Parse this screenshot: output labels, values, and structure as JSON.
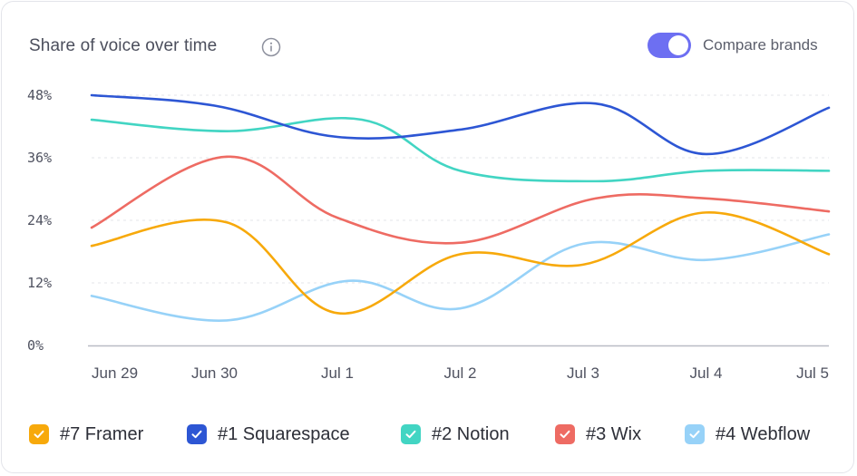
{
  "header": {
    "title": "Share of voice over time",
    "info_icon": "info-icon",
    "toggle_label": "Compare brands",
    "toggle_on": true,
    "toggle_color": "#6d6ff2"
  },
  "chart_data": {
    "type": "line",
    "title": "Share of voice over time",
    "categories": [
      "Jun 29",
      "Jun 30",
      "Jul 1",
      "Jul 2",
      "Jul 3",
      "Jul 4",
      "Jul 5"
    ],
    "y_ticks": [
      "0%",
      "12%",
      "24%",
      "36%",
      "48%"
    ],
    "ylim": [
      0,
      50
    ],
    "grid": true,
    "legend_position": "bottom",
    "series": [
      {
        "name": "#7 Framer",
        "color": "#f7a90b",
        "x": [
          0,
          1.1,
          2,
          3,
          4.0,
          5,
          6
        ],
        "values": [
          19.1,
          23.6,
          6.2,
          17.5,
          15.5,
          25.5,
          17.5
        ]
      },
      {
        "name": "#1 Squarespace",
        "color": "#2d56d4",
        "x": [
          0,
          1,
          2,
          3,
          4.1,
          5,
          6
        ],
        "values": [
          48,
          46,
          40,
          41.4,
          46.4,
          36.7,
          45.6
        ]
      },
      {
        "name": "#2 Notion",
        "color": "#42d5c3",
        "x": [
          0,
          1.1,
          2.2,
          3,
          4.1,
          5,
          6
        ],
        "values": [
          43.3,
          41.1,
          43.3,
          33.5,
          31.5,
          33.5,
          33.5
        ]
      },
      {
        "name": "#3 Wix",
        "color": "#ee6b63",
        "x": [
          0,
          1.1,
          2,
          3,
          4.1,
          5,
          6
        ],
        "values": [
          22.6,
          36.2,
          24.5,
          19.7,
          28.2,
          28.2,
          25.7
        ]
      },
      {
        "name": "#4 Webflow",
        "color": "#97d2f8",
        "x": [
          0,
          1.1,
          2.1,
          3,
          4.0,
          5,
          6
        ],
        "values": [
          9.5,
          4.8,
          12.4,
          7.1,
          19.5,
          16.4,
          21.3
        ]
      }
    ]
  }
}
